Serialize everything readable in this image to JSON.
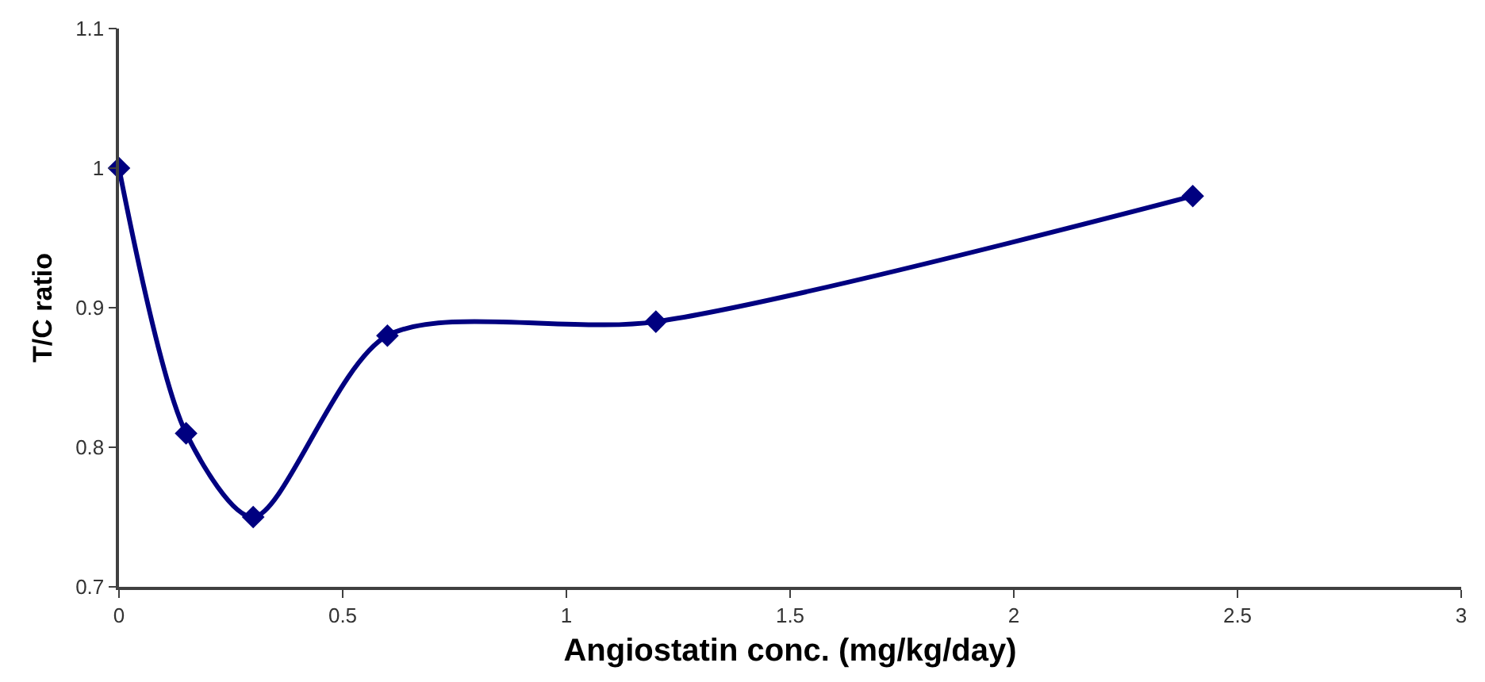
{
  "chart_data": {
    "type": "line",
    "xlabel": "Angiostatin conc. (mg/kg/day)",
    "ylabel": "T/C ratio",
    "x": [
      0,
      0.15,
      0.3,
      0.6,
      1.2,
      2.4
    ],
    "series": [
      {
        "color": "#000080",
        "values": [
          1.0,
          0.81,
          0.75,
          0.88,
          0.89,
          0.98
        ]
      }
    ],
    "xlim": [
      0,
      3
    ],
    "xticks": [
      0,
      0.5,
      1,
      1.5,
      2,
      2.5,
      3
    ],
    "ylim": [
      0.7,
      1.1
    ],
    "yticks": [
      0.7,
      0.8,
      0.9,
      1,
      1.1
    ],
    "marker": "diamond",
    "line_style": "solid"
  }
}
